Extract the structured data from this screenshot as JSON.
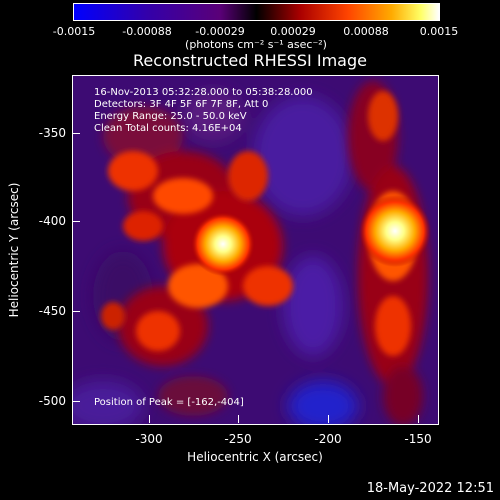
{
  "colorbar": {
    "ticks": [
      "-0.0015",
      "-0.00088",
      "-0.00029",
      "0.00029",
      "0.00088",
      "0.0015"
    ],
    "units_label": "(photons cm⁻² s⁻¹ asec⁻²)"
  },
  "title": "Reconstructed RHESSI Image",
  "annotations": {
    "time": "16-Nov-2013 05:32:28.000 to 05:38:28.000",
    "detectors": "Detectors: 3F 4F 5F 6F 7F 8F, Att 0",
    "energy": "Energy Range: 25.0 - 50.0 keV",
    "clean": "Clean    Total counts: 4.16E+04",
    "peak": "Position of Peak = [-162,-404]"
  },
  "axes": {
    "xlabel": "Heliocentric X (arcsec)",
    "ylabel": "Heliocentric Y (arcsec)",
    "xticks": [
      "-300",
      "-250",
      "-200",
      "-150"
    ],
    "yticks": [
      "-350",
      "-400",
      "-450",
      "-500"
    ]
  },
  "timestamp": "18-May-2022 12:51"
}
